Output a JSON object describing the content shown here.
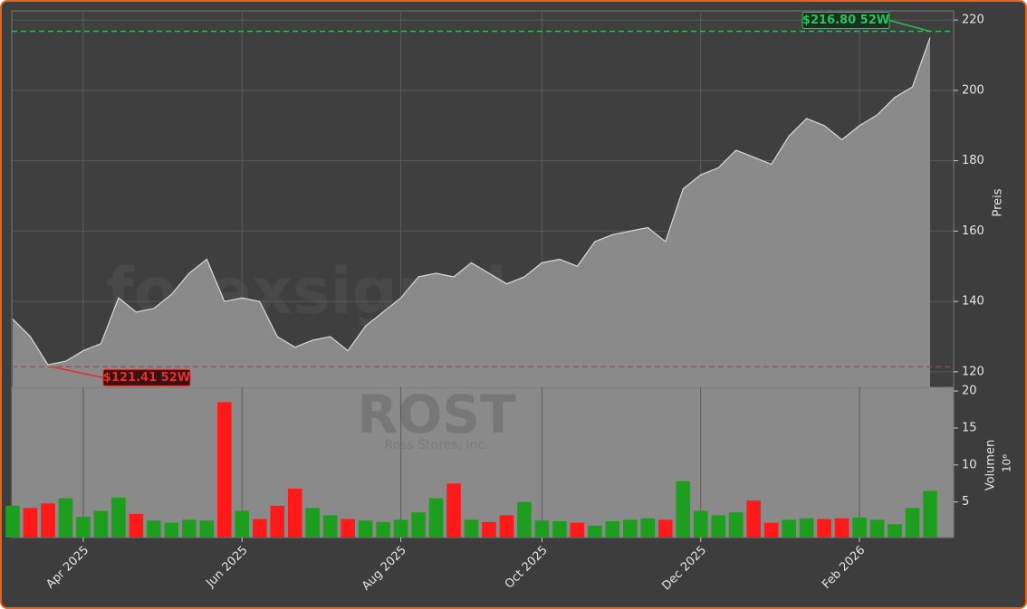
{
  "chart_data": {
    "type": "stock",
    "watermark": "forexsignale.trade",
    "ticker": "ROST",
    "company": "Ross Stores, Inc.",
    "categories": [
      "Apr 2025",
      "Jun 2025",
      "Aug 2025",
      "Oct 2025",
      "Dec 2025",
      "Feb 2026"
    ],
    "category_index": [
      4,
      13,
      22,
      30,
      39,
      48
    ],
    "price": {
      "name": "Preis",
      "color": "#8a8a8a",
      "line_color": "#d9d9d9",
      "values": [
        135,
        130,
        122,
        123,
        126,
        128,
        141,
        137,
        138,
        142,
        148,
        152,
        140,
        141,
        140,
        130,
        127,
        129,
        130,
        126,
        133,
        137,
        141,
        147,
        148,
        147,
        151,
        148,
        145,
        147,
        151,
        152,
        150,
        157,
        159,
        160,
        161,
        157,
        172,
        176,
        178,
        183,
        181,
        179,
        187,
        192,
        190,
        186,
        190,
        193,
        198,
        201,
        215
      ],
      "ylim": [
        115.6,
        222.6
      ],
      "yticks": [
        120,
        140,
        160,
        180,
        200,
        220
      ]
    },
    "volume": {
      "name": "Volumen",
      "exponent": "10⁶",
      "up_color": "#1e9e1e",
      "down_color": "#ff1a1a",
      "values": [
        4.5,
        4.2,
        4.8,
        5.5,
        3.0,
        3.8,
        5.6,
        3.4,
        2.5,
        2.2,
        2.6,
        2.5,
        18.5,
        3.8,
        2.7,
        4.5,
        6.8,
        4.2,
        3.2,
        2.7,
        2.5,
        2.3,
        2.6,
        3.6,
        5.5,
        7.5,
        2.6,
        2.3,
        3.2,
        5.0,
        2.5,
        2.4,
        2.2,
        1.8,
        2.4,
        2.6,
        2.8,
        2.6,
        7.8,
        3.8,
        3.2,
        3.6,
        5.2,
        2.2,
        2.6,
        2.8,
        2.7,
        2.8,
        2.9,
        2.6,
        2.0,
        4.2,
        6.5
      ],
      "ylim": [
        0.2,
        20.5
      ],
      "yticks": [
        5,
        10,
        15,
        20
      ]
    },
    "high": {
      "value": 216.8,
      "label": "$216.80 52W",
      "color": "#2fbf5f"
    },
    "low": {
      "value": 121.41,
      "label": "$121.41 52W",
      "color": "#e03030"
    },
    "grid": true
  }
}
